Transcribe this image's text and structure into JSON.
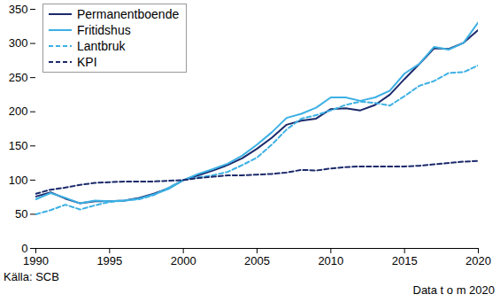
{
  "chart_data": {
    "type": "line",
    "x": [
      1990,
      1991,
      1992,
      1993,
      1994,
      1995,
      1996,
      1997,
      1998,
      1999,
      2000,
      2001,
      2002,
      2003,
      2004,
      2005,
      2006,
      2007,
      2008,
      2009,
      2010,
      2011,
      2012,
      2013,
      2014,
      2015,
      2016,
      2017,
      2018,
      2019,
      2020
    ],
    "series": [
      {
        "name": "Permanentboende",
        "color": "#1b2a6b",
        "line_style": "solid",
        "values": [
          76,
          82,
          73,
          66,
          69,
          69,
          70,
          74,
          80,
          88,
          100,
          107,
          114,
          122,
          132,
          146,
          162,
          181,
          187,
          190,
          204,
          205,
          202,
          210,
          225,
          248,
          270,
          293,
          292,
          301,
          320
        ]
      },
      {
        "name": "Fritidshus",
        "color": "#3cb0e4",
        "line_style": "solid",
        "values": [
          72,
          81,
          74,
          66,
          70,
          69,
          70,
          73,
          79,
          87,
          100,
          109,
          116,
          124,
          136,
          152,
          170,
          191,
          197,
          206,
          221,
          221,
          216,
          221,
          231,
          256,
          270,
          295,
          291,
          301,
          331
        ]
      },
      {
        "name": "Lantbruk",
        "color": "#3cb0e4",
        "line_style": "dashed",
        "values": [
          50,
          56,
          64,
          57,
          63,
          68,
          70,
          72,
          78,
          89,
          100,
          104,
          107,
          112,
          122,
          133,
          152,
          174,
          190,
          195,
          202,
          210,
          215,
          213,
          209,
          223,
          238,
          245,
          257,
          258,
          268
        ]
      },
      {
        "name": "KPI",
        "color": "#1b2a6b",
        "line_style": "dashed",
        "values": [
          80,
          86,
          89,
          93,
          96,
          97,
          98,
          98,
          98,
          99,
          100,
          103,
          105,
          107,
          107,
          108,
          109,
          111,
          115,
          114,
          117,
          119,
          120,
          120,
          120,
          120,
          121,
          123,
          125,
          127,
          128
        ]
      }
    ],
    "xlim": [
      1990,
      2020
    ],
    "xticks": [
      1990,
      1995,
      2000,
      2005,
      2010,
      2015,
      2020
    ],
    "ylim": [
      0,
      350
    ],
    "yticks": [
      0,
      50,
      100,
      150,
      200,
      250,
      300,
      350
    ],
    "grid": false,
    "legend": "top-left",
    "annotations": [
      "Källa: SCB",
      "Data t o m 2020"
    ]
  }
}
